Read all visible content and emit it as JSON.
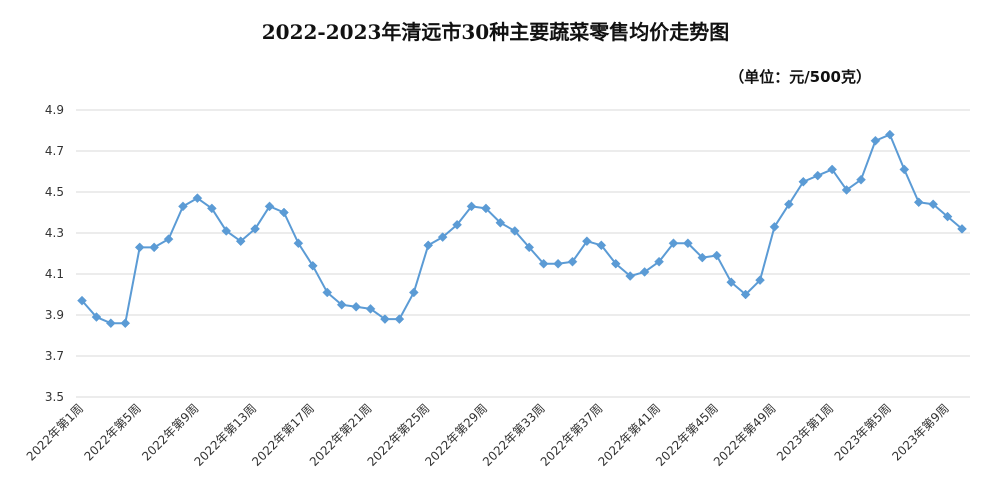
{
  "title": "2022-2023年清远市30种主要蔬菜零售均价走势图",
  "unit_label": "（单位：元/500克）",
  "chart_data": {
    "type": "line",
    "title": "2022-2023年清远市30种主要蔬菜零售均价走势图",
    "unit": "（单位：元/500克）",
    "xlabel": "",
    "ylabel": "",
    "ylim": [
      3.5,
      4.9
    ],
    "yticks": [
      "3.5",
      "3.7",
      "3.9",
      "4.1",
      "4.3",
      "4.5",
      "4.7",
      "4.9"
    ],
    "grid": true,
    "legend": "none",
    "color": "#5B9BD5",
    "x": [
      "2022年第1周",
      "2022年第2周",
      "2022年第3周",
      "2022年第4周",
      "2022年第5周",
      "2022年第6周",
      "2022年第7周",
      "2022年第8周",
      "2022年第9周",
      "2022年第10周",
      "2022年第11周",
      "2022年第12周",
      "2022年第13周",
      "2022年第14周",
      "2022年第15周",
      "2022年第16周",
      "2022年第17周",
      "2022年第18周",
      "2022年第19周",
      "2022年第20周",
      "2022年第21周",
      "2022年第22周",
      "2022年第23周",
      "2022年第24周",
      "2022年第25周",
      "2022年第26周",
      "2022年第27周",
      "2022年第28周",
      "2022年第29周",
      "2022年第30周",
      "2022年第31周",
      "2022年第32周",
      "2022年第33周",
      "2022年第34周",
      "2022年第35周",
      "2022年第36周",
      "2022年第37周",
      "2022年第38周",
      "2022年第39周",
      "2022年第40周",
      "2022年第41周",
      "2022年第42周",
      "2022年第43周",
      "2022年第44周",
      "2022年第45周",
      "2022年第46周",
      "2022年第47周",
      "2022年第48周",
      "2022年第49周",
      "2022年第50周",
      "2022年第51周",
      "2022年第52周",
      "2023年第1周",
      "2023年第2周",
      "2023年第3周",
      "2023年第4周",
      "2023年第5周",
      "2023年第6周",
      "2023年第7周",
      "2023年第8周",
      "2023年第9周",
      "2023年第10周"
    ],
    "xtick_labels": [
      "2022年第1周",
      "2022年第5周",
      "2022年第9周",
      "2022年第13周",
      "2022年第17周",
      "2022年第21周",
      "2022年第25周",
      "2022年第29周",
      "2022年第33周",
      "2022年第37周",
      "2022年第41周",
      "2022年第45周",
      "2022年第49周",
      "2023年第1周",
      "2023年第5周",
      "2023年第9周"
    ],
    "series": [
      {
        "values": [
          3.97,
          3.89,
          3.86,
          3.86,
          4.23,
          4.23,
          4.27,
          4.43,
          4.47,
          4.42,
          4.31,
          4.26,
          4.32,
          4.43,
          4.4,
          4.25,
          4.14,
          4.01,
          3.95,
          3.94,
          3.93,
          3.88,
          3.88,
          4.01,
          4.24,
          4.28,
          4.34,
          4.43,
          4.42,
          4.35,
          4.31,
          4.23,
          4.15,
          4.15,
          4.16,
          4.26,
          4.24,
          4.15,
          4.09,
          4.11,
          4.16,
          4.25,
          4.25,
          4.18,
          4.19,
          4.06,
          4.0,
          4.07,
          4.33,
          4.44,
          4.55,
          4.58,
          4.61,
          4.51,
          4.56,
          4.75,
          4.78,
          4.61,
          4.45,
          4.44,
          4.38,
          4.32
        ]
      }
    ]
  }
}
